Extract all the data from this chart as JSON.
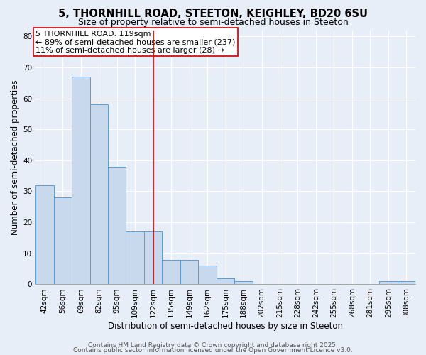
{
  "title1": "5, THORNHILL ROAD, STEETON, KEIGHLEY, BD20 6SU",
  "title2": "Size of property relative to semi-detached houses in Steeton",
  "xlabel": "Distribution of semi-detached houses by size in Steeton",
  "ylabel": "Number of semi-detached properties",
  "bar_labels": [
    "42sqm",
    "56sqm",
    "69sqm",
    "82sqm",
    "95sqm",
    "109sqm",
    "122sqm",
    "135sqm",
    "149sqm",
    "162sqm",
    "175sqm",
    "188sqm",
    "202sqm",
    "215sqm",
    "228sqm",
    "242sqm",
    "255sqm",
    "268sqm",
    "281sqm",
    "295sqm",
    "308sqm"
  ],
  "bar_values": [
    32,
    28,
    67,
    58,
    38,
    17,
    17,
    8,
    8,
    6,
    2,
    1,
    0,
    0,
    0,
    0,
    0,
    0,
    0,
    1,
    1
  ],
  "bar_color": "#c9d9ed",
  "bar_edge_color": "#5b9bd5",
  "property_label": "5 THORNHILL ROAD: 119sqm",
  "annotation_line1": "← 89% of semi-detached houses are smaller (237)",
  "annotation_line2": "11% of semi-detached houses are larger (28) →",
  "vline_x_idx": 6,
  "vline_color": "#cc0000",
  "ylim": [
    0,
    82
  ],
  "yticks": [
    0,
    10,
    20,
    30,
    40,
    50,
    60,
    70,
    80
  ],
  "footer1": "Contains HM Land Registry data © Crown copyright and database right 2025.",
  "footer2": "Contains public sector information licensed under the Open Government Licence v3.0.",
  "bg_color": "#e8eef8",
  "plot_bg_color": "#e8eef8",
  "title_fontsize": 10.5,
  "subtitle_fontsize": 9,
  "axis_label_fontsize": 8.5,
  "tick_fontsize": 7.5,
  "annotation_fontsize": 8,
  "footer_fontsize": 6.5
}
